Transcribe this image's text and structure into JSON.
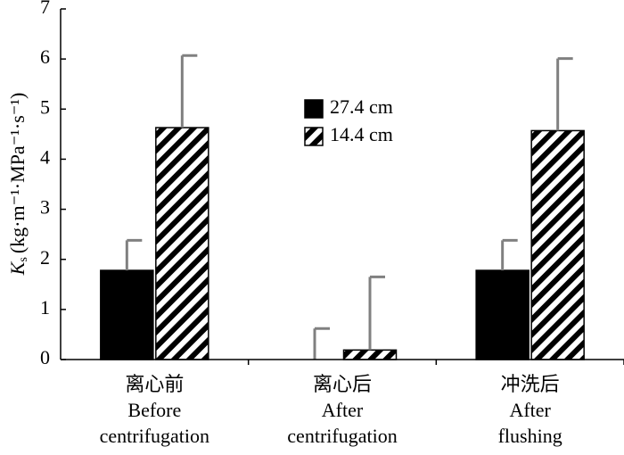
{
  "chart_data": {
    "type": "bar",
    "ylabel": {
      "symbol": "K",
      "subscript": "s",
      "unit": "(kg·m⁻¹·MPa⁻¹·s⁻¹)"
    },
    "categories": [
      [
        "离心前",
        "Before",
        "centrifugation"
      ],
      [
        "离心后",
        "After",
        "centrifugation"
      ],
      [
        "冲洗后",
        "After",
        "flushing"
      ]
    ],
    "series": [
      {
        "name": "27.4 cm",
        "color": "#000000",
        "hatch": false,
        "values": [
          1.78,
          0,
          1.78
        ],
        "errors": [
          0.6,
          0.62,
          0.6
        ]
      },
      {
        "name": "14.4 cm",
        "color": "#000000",
        "hatch": true,
        "values": [
          4.63,
          0.19,
          4.57
        ],
        "errors": [
          1.44,
          1.46,
          1.44
        ]
      }
    ],
    "error_color": "#808080",
    "ylim": [
      0,
      7
    ],
    "yticks": [
      0,
      1,
      2,
      3,
      4,
      5,
      6,
      7
    ]
  }
}
